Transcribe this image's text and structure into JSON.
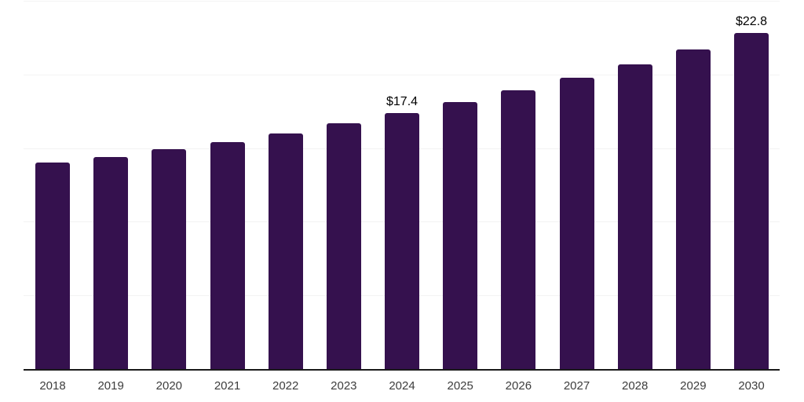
{
  "chart_data": {
    "type": "bar",
    "title": "",
    "xlabel": "",
    "ylabel": "",
    "categories": [
      "2018",
      "2019",
      "2020",
      "2021",
      "2022",
      "2023",
      "2024",
      "2025",
      "2026",
      "2027",
      "2028",
      "2029",
      "2030"
    ],
    "values": [
      14.0,
      14.4,
      14.9,
      15.4,
      16.0,
      16.7,
      17.4,
      18.1,
      18.9,
      19.8,
      20.7,
      21.7,
      22.8
    ],
    "ylim": [
      0,
      25
    ],
    "gridline_step": 5,
    "grid": true,
    "legend": false,
    "y_axis_labels_visible": false,
    "data_labels": [
      {
        "category": "2024",
        "text": "$17.4"
      },
      {
        "category": "2030",
        "text": "$22.8"
      }
    ],
    "colors": {
      "bar": "#35114E",
      "gridline": "#f3f3f3",
      "axis_line": "#1a1a1a",
      "tick_label": "#3d3d3d",
      "value_label": "#000000",
      "background": "#ffffff"
    }
  }
}
